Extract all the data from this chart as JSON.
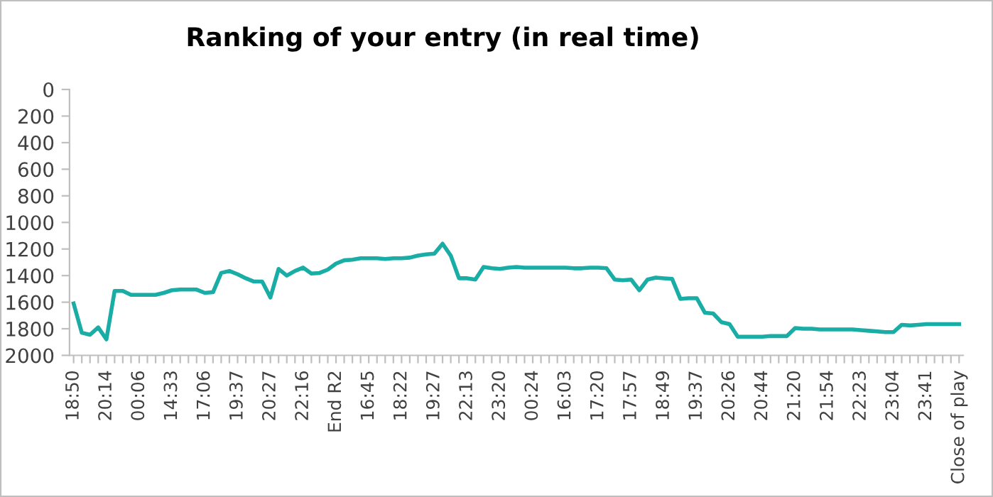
{
  "chart_data": {
    "type": "line",
    "title": "Ranking of your entry (in real time)",
    "categories": [
      "18:50",
      null,
      null,
      null,
      "20:14",
      null,
      null,
      null,
      "00:06",
      null,
      null,
      null,
      "14:33",
      null,
      null,
      null,
      "17:06",
      null,
      null,
      null,
      "19:37",
      null,
      null,
      null,
      "20:27",
      null,
      null,
      null,
      "22:16",
      null,
      null,
      null,
      "End R2",
      null,
      null,
      null,
      "16:45",
      null,
      null,
      null,
      "18:22",
      null,
      null,
      null,
      "19:27",
      null,
      null,
      null,
      "22:13",
      null,
      null,
      null,
      "23:20",
      null,
      null,
      null,
      "00:24",
      null,
      null,
      null,
      "16:03",
      null,
      null,
      null,
      "17:20",
      null,
      null,
      null,
      "17:57",
      null,
      null,
      null,
      "18:49",
      null,
      null,
      null,
      "19:37",
      null,
      null,
      null,
      "20:26",
      null,
      null,
      null,
      "20:44",
      null,
      null,
      null,
      "21:20",
      null,
      null,
      null,
      "21:54",
      null,
      null,
      null,
      "22:23",
      null,
      null,
      null,
      "23:04",
      null,
      null,
      null,
      "23:41",
      null,
      null,
      null,
      "Close of play"
    ],
    "series": [
      {
        "color": "#1aada6",
        "values": [
          1610,
          1830,
          1845,
          1790,
          1880,
          1515,
          1515,
          1545,
          1545,
          1545,
          1545,
          1530,
          1510,
          1505,
          1505,
          1505,
          1530,
          1525,
          1380,
          1365,
          1390,
          1420,
          1445,
          1445,
          1565,
          1350,
          1400,
          1365,
          1340,
          1385,
          1380,
          1355,
          1310,
          1285,
          1280,
          1270,
          1270,
          1270,
          1275,
          1270,
          1270,
          1265,
          1250,
          1240,
          1235,
          1160,
          1250,
          1420,
          1420,
          1430,
          1335,
          1345,
          1350,
          1340,
          1335,
          1340,
          1340,
          1340,
          1340,
          1340,
          1340,
          1345,
          1345,
          1340,
          1340,
          1345,
          1430,
          1435,
          1430,
          1510,
          1430,
          1415,
          1420,
          1425,
          1575,
          1570,
          1570,
          1680,
          1685,
          1750,
          1765,
          1860,
          1860,
          1860,
          1860,
          1855,
          1855,
          1855,
          1795,
          1800,
          1800,
          1805,
          1805,
          1805,
          1805,
          1805,
          1810,
          1815,
          1820,
          1825,
          1825,
          1770,
          1775,
          1770,
          1765,
          1765,
          1765,
          1765,
          1765
        ]
      }
    ],
    "ylim": [
      2000,
      0
    ],
    "yticks": [
      0,
      200,
      400,
      600,
      800,
      1000,
      1200,
      1400,
      1600,
      1800,
      2000
    ]
  }
}
